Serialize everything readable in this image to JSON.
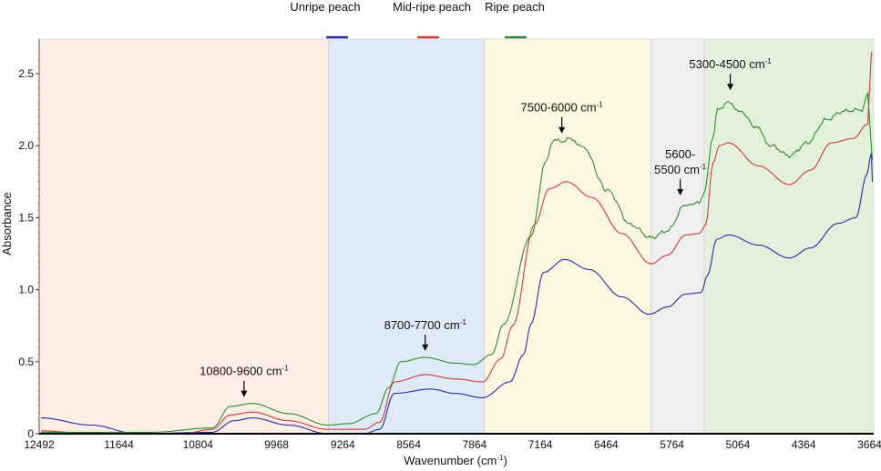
{
  "chart_data": {
    "type": "line",
    "title": "",
    "xlabel": "Wavenumber (cm",
    "xlabel_sup": "-1",
    "xlabel_end": ")",
    "ylabel": "Absorbance",
    "xlim": [
      12492,
      3620
    ],
    "ylim": [
      0,
      2.74
    ],
    "x_reversed": true,
    "grid": false,
    "legend_placement": "top-center",
    "xticks": [
      12492,
      11644,
      10804,
      9968,
      9264,
      8564,
      7864,
      7164,
      6464,
      5764,
      5064,
      4364,
      3664
    ],
    "xtick_labels": [
      "12492",
      "11644",
      "10804",
      "9968",
      "9264",
      "8564",
      "7864",
      "7164",
      "6464",
      "5764",
      "5064",
      "4364",
      "3664"
    ],
    "yticks": [
      0,
      0.5,
      1.0,
      1.5,
      2.0,
      2.5
    ],
    "ytick_labels": [
      "0",
      "0.5",
      "1.0",
      "1.5",
      "2.0",
      "2.5"
    ],
    "regions": [
      {
        "from": 12492,
        "to": 9415,
        "color": "#fdeee5"
      },
      {
        "from": 9415,
        "to": 7760,
        "color": "#deebf6"
      },
      {
        "from": 7760,
        "to": 5988,
        "color": "#fdf7e1"
      },
      {
        "from": 5988,
        "to": 5423,
        "color": "#efefef"
      },
      {
        "from": 5423,
        "to": 3620,
        "color": "#e3f0dc"
      }
    ],
    "series": [
      {
        "name": "Unripe peach",
        "color": "#2b2ba8",
        "x": [
          12473,
          11940,
          11456,
          10653,
          10420,
          10227,
          9840,
          9423,
          9036,
          8872,
          8717,
          8330,
          8068,
          7778,
          7487,
          7342,
          7265,
          7129,
          6907,
          6645,
          6297,
          6006,
          5813,
          5619,
          5455,
          5387,
          5290,
          5164,
          4845,
          4516,
          4293,
          4003,
          3809,
          3693,
          3644,
          3635
        ],
        "y": [
          0.11,
          0.06,
          0.0,
          0.01,
          0.09,
          0.11,
          0.06,
          0.0,
          0.0,
          0.03,
          0.28,
          0.31,
          0.28,
          0.25,
          0.36,
          0.55,
          0.76,
          1.12,
          1.21,
          1.14,
          0.95,
          0.83,
          0.88,
          0.97,
          0.98,
          1.1,
          1.35,
          1.38,
          1.31,
          1.22,
          1.29,
          1.46,
          1.5,
          1.8,
          1.95,
          1.75
        ]
      },
      {
        "name": "Mid-ripe peach",
        "color": "#d23a3a",
        "x": [
          12473,
          11940,
          10972,
          10653,
          10459,
          10227,
          9840,
          9423,
          9036,
          8872,
          8717,
          8388,
          8068,
          7778,
          7584,
          7458,
          7226,
          7071,
          6887,
          6616,
          6297,
          5987,
          5813,
          5619,
          5474,
          5406,
          5329,
          5261,
          5164,
          4845,
          4516,
          4293,
          4070,
          3838,
          3683,
          3644
        ],
        "y": [
          0.02,
          0.0,
          0.0,
          0.03,
          0.13,
          0.15,
          0.09,
          0.03,
          0.03,
          0.08,
          0.36,
          0.41,
          0.38,
          0.36,
          0.52,
          0.75,
          1.45,
          1.7,
          1.75,
          1.64,
          1.39,
          1.18,
          1.24,
          1.38,
          1.39,
          1.45,
          1.88,
          2.0,
          2.02,
          1.86,
          1.73,
          1.83,
          2.02,
          2.05,
          2.15,
          2.65
        ]
      },
      {
        "name": "Ripe peach",
        "color": "#2e8b2e",
        "x": [
          12473,
          11292,
          10653,
          10459,
          10227,
          9840,
          9423,
          9201,
          8910,
          8775,
          8649,
          8388,
          8068,
          7875,
          7681,
          7555,
          7265,
          7100,
          7032,
          6936,
          6839,
          6713,
          6452,
          6200,
          5987,
          5813,
          5619,
          5474,
          5426,
          5329,
          5280,
          5164,
          5038,
          4874,
          4709,
          4516,
          4322,
          4128,
          3935,
          3741,
          3683,
          3635
        ],
        "y": [
          0.01,
          0.01,
          0.04,
          0.19,
          0.21,
          0.14,
          0.06,
          0.07,
          0.14,
          0.32,
          0.5,
          0.53,
          0.49,
          0.48,
          0.55,
          0.76,
          1.37,
          1.9,
          2.04,
          2.03,
          2.05,
          1.99,
          1.69,
          1.45,
          1.36,
          1.41,
          1.59,
          1.6,
          1.67,
          2.05,
          2.25,
          2.3,
          2.24,
          2.13,
          2.0,
          1.93,
          2.02,
          2.18,
          2.24,
          2.25,
          2.36,
          1.9
        ]
      }
    ],
    "annotations": [
      {
        "lines": [
          "10800-9600 cm"
        ],
        "sup": "-1",
        "x": 10314,
        "y": 0.23
      },
      {
        "lines": [
          "8700-7700 cm"
        ],
        "sup": "-1",
        "x": 8388,
        "y": 0.55
      },
      {
        "lines": [
          "7500-6000 cm"
        ],
        "sup": "-1",
        "x": 6936,
        "y": 2.06
      },
      {
        "lines": [
          "5600-",
          "5500 cm"
        ],
        "sup": "-1",
        "x": 5677,
        "y": 1.63
      },
      {
        "lines": [
          "5300-4500 cm"
        ],
        "sup": "-1",
        "x": 5145,
        "y": 2.36
      }
    ]
  }
}
